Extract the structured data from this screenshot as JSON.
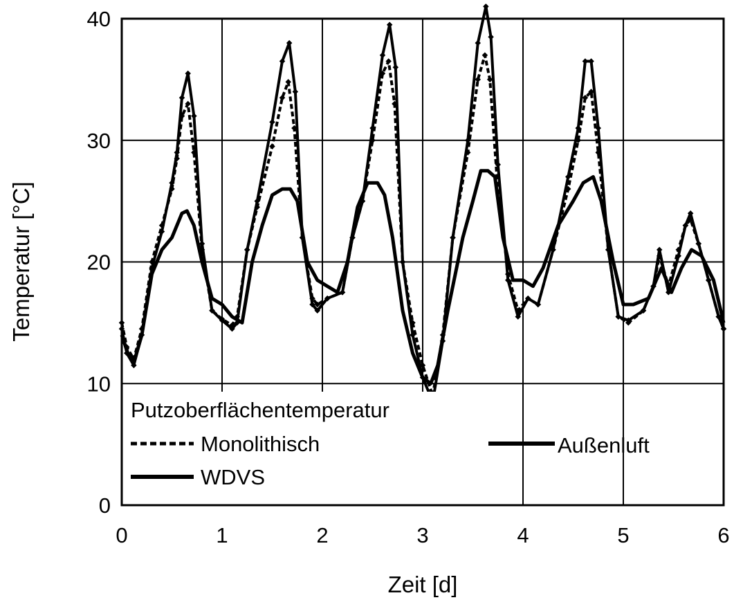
{
  "chart_data": {
    "type": "line",
    "xlabel": "Zeit [d]",
    "ylabel": "Temperatur [°C]",
    "xlim": [
      0,
      6
    ],
    "ylim": [
      0,
      40
    ],
    "x_ticks": [
      "0",
      "1",
      "2",
      "3",
      "4",
      "5",
      "6"
    ],
    "y_ticks": [
      "0",
      "10",
      "20",
      "30",
      "40"
    ],
    "grid": true,
    "legend": {
      "title": "Putzoberflächentemperatur",
      "placement": "bottom-left",
      "entries": [
        "Monolithisch",
        "WDVS",
        "Außenluft"
      ]
    },
    "series": [
      {
        "name": "Monolithisch",
        "style": "dashed-markers",
        "x": [
          0,
          0.05,
          0.12,
          0.2,
          0.3,
          0.4,
          0.5,
          0.55,
          0.6,
          0.66,
          0.72,
          0.8,
          0.9,
          1.0,
          1.1,
          1.15,
          1.25,
          1.35,
          1.5,
          1.6,
          1.66,
          1.72,
          1.8,
          1.9,
          1.95,
          2.05,
          2.2,
          2.3,
          2.4,
          2.5,
          2.6,
          2.66,
          2.72,
          2.8,
          2.9,
          3.0,
          3.1,
          3.2,
          3.3,
          3.45,
          3.55,
          3.62,
          3.67,
          3.74,
          3.85,
          3.95,
          4.05,
          4.15,
          4.3,
          4.45,
          4.55,
          4.62,
          4.68,
          4.75,
          4.85,
          4.95,
          5.05,
          5.2,
          5.3,
          5.36,
          5.45,
          5.55,
          5.62,
          5.67,
          5.75,
          5.85,
          5.95,
          6.0
        ],
        "y": [
          15,
          13,
          12,
          14.5,
          20,
          23,
          26,
          28.5,
          32,
          33,
          29,
          21,
          16,
          15.3,
          14.8,
          15.5,
          21,
          24.5,
          29.5,
          33.5,
          34.8,
          31,
          22,
          17,
          16.5,
          17,
          17.5,
          22,
          25,
          30,
          35.5,
          36.5,
          33,
          20,
          15,
          11.5,
          9,
          14,
          22,
          29,
          35,
          37,
          35,
          27,
          19,
          16,
          17,
          16.5,
          21,
          26,
          30,
          33.5,
          34,
          29,
          21,
          15.5,
          15,
          16,
          18,
          20.5,
          18,
          21,
          23,
          23.5,
          21.5,
          18.5,
          15.5,
          14.5
        ]
      },
      {
        "name": "WDVS",
        "style": "solid-markers",
        "x": [
          0,
          0.05,
          0.12,
          0.2,
          0.3,
          0.4,
          0.5,
          0.55,
          0.6,
          0.66,
          0.72,
          0.8,
          0.9,
          1.0,
          1.1,
          1.15,
          1.25,
          1.35,
          1.5,
          1.6,
          1.67,
          1.73,
          1.8,
          1.9,
          1.95,
          2.05,
          2.2,
          2.3,
          2.4,
          2.5,
          2.6,
          2.67,
          2.73,
          2.8,
          2.9,
          3.0,
          3.1,
          3.2,
          3.3,
          3.45,
          3.55,
          3.63,
          3.68,
          3.75,
          3.85,
          3.95,
          4.05,
          4.15,
          4.3,
          4.45,
          4.55,
          4.62,
          4.68,
          4.75,
          4.85,
          4.95,
          5.05,
          5.2,
          5.3,
          5.36,
          5.45,
          5.55,
          5.62,
          5.67,
          5.75,
          5.85,
          5.95,
          6.0
        ],
        "y": [
          14.5,
          12.5,
          11.5,
          14,
          19.5,
          22.5,
          26.5,
          29,
          33.5,
          35.5,
          32,
          21.5,
          16,
          15.2,
          14.5,
          15,
          21,
          25,
          31.5,
          36.5,
          38,
          34,
          22,
          16.5,
          16,
          17,
          17.5,
          22,
          25,
          31,
          37,
          39.5,
          36,
          20,
          14,
          10.5,
          8.5,
          13.5,
          22,
          30,
          38,
          41,
          38.5,
          28,
          18.5,
          15.5,
          17,
          16.5,
          21,
          27,
          31,
          36.5,
          36.5,
          31,
          21,
          15.5,
          15.2,
          16,
          18,
          21,
          17.5,
          20.5,
          23,
          24,
          21.5,
          18.5,
          15.5,
          14.5
        ]
      },
      {
        "name": "Außenluft",
        "style": "solid",
        "x": [
          0,
          0.06,
          0.13,
          0.2,
          0.3,
          0.4,
          0.5,
          0.6,
          0.65,
          0.72,
          0.8,
          0.9,
          1.0,
          1.1,
          1.2,
          1.3,
          1.4,
          1.5,
          1.6,
          1.68,
          1.75,
          1.85,
          1.95,
          2.05,
          2.15,
          2.25,
          2.35,
          2.45,
          2.55,
          2.62,
          2.7,
          2.8,
          2.9,
          3.0,
          3.08,
          3.15,
          3.25,
          3.4,
          3.5,
          3.58,
          3.65,
          3.72,
          3.8,
          3.9,
          4.0,
          4.1,
          4.2,
          4.35,
          4.5,
          4.6,
          4.7,
          4.78,
          4.9,
          5.0,
          5.1,
          5.25,
          5.38,
          5.48,
          5.58,
          5.68,
          5.78,
          5.9,
          6.0
        ],
        "y": [
          14,
          12.5,
          12,
          14,
          19,
          21,
          22,
          24,
          24.2,
          23,
          20,
          17,
          16.5,
          15.5,
          15,
          20,
          23,
          25.5,
          26,
          26,
          25,
          20,
          18.5,
          18,
          17.5,
          20,
          24.5,
          26.5,
          26.5,
          25.5,
          22,
          16,
          12.5,
          10.5,
          10,
          11.5,
          16,
          22,
          25,
          27.5,
          27.5,
          27,
          22,
          18.5,
          18.5,
          18,
          19.5,
          23,
          25,
          26.5,
          27,
          25,
          20,
          16.5,
          16.5,
          17,
          19.5,
          17.5,
          19.5,
          21,
          20.5,
          18.5,
          15
        ]
      }
    ]
  }
}
